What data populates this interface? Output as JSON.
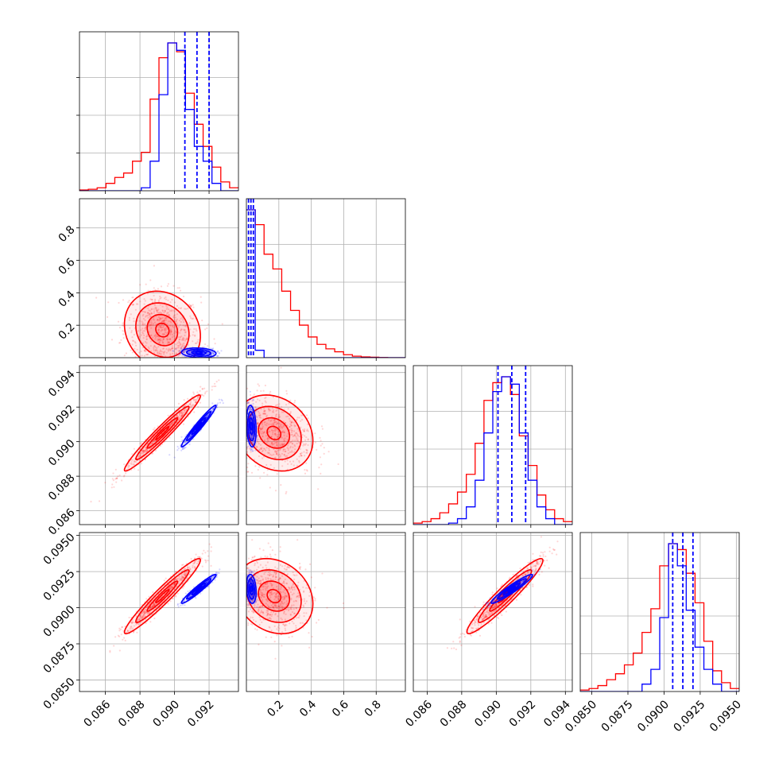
{
  "colors": {
    "red": "#ff0000",
    "blue": "#0000ff",
    "grid": "#b0b0b0"
  },
  "chart_data": {
    "type": "corner",
    "params": [
      {
        "range": [
          0.0845,
          0.0937
        ],
        "ticks": [
          0.086,
          0.088,
          0.09,
          0.092
        ],
        "tick_labels": [
          "0.086",
          "0.088",
          "0.090",
          "0.092"
        ]
      },
      {
        "range": [
          0.0,
          0.98
        ],
        "ticks": [
          0.2,
          0.4,
          0.6,
          0.8
        ],
        "tick_labels": [
          "0.2",
          "0.4",
          "0.6",
          "0.8"
        ]
      },
      {
        "range": [
          0.0852,
          0.0944
        ],
        "ticks": [
          0.086,
          0.088,
          0.09,
          0.092,
          0.094
        ],
        "tick_labels": [
          "0.086",
          "0.088",
          "0.090",
          "0.092",
          "0.094"
        ]
      },
      {
        "range": [
          0.0842,
          0.0952
        ],
        "ticks": [
          0.085,
          0.0875,
          0.09,
          0.0925,
          0.095
        ],
        "tick_labels": [
          "0.0850",
          "0.0875",
          "0.0900",
          "0.0925",
          "0.0950"
        ]
      }
    ],
    "series": [
      {
        "color": "#ff0000",
        "means": [
          0.0893,
          0.17,
          0.0905,
          0.0908
        ],
        "sds": [
          0.0011,
          0.12,
          0.0011,
          0.0013
        ],
        "histograms": [
          [
            0.005,
            0.01,
            0.02,
            0.05,
            0.09,
            0.12,
            0.2,
            0.26,
            0.62,
            0.9,
            1.0,
            0.94,
            0.66,
            0.45,
            0.3,
            0.16,
            0.06,
            0.02
          ],
          [
            1.0,
            0.9,
            0.7,
            0.6,
            0.45,
            0.32,
            0.22,
            0.14,
            0.09,
            0.06,
            0.04,
            0.02,
            0.01,
            0.005,
            0.003,
            0.001,
            0.0,
            0.0
          ],
          [
            0.01,
            0.02,
            0.04,
            0.08,
            0.14,
            0.22,
            0.34,
            0.55,
            0.84,
            0.96,
            1.0,
            0.88,
            0.6,
            0.4,
            0.2,
            0.1,
            0.04,
            0.02
          ],
          [
            0.01,
            0.02,
            0.04,
            0.08,
            0.12,
            0.18,
            0.26,
            0.4,
            0.56,
            0.85,
            1.0,
            0.96,
            0.8,
            0.6,
            0.34,
            0.14,
            0.06,
            0.02
          ]
        ]
      },
      {
        "color": "#0000ff",
        "means": [
          0.0914,
          0.03,
          0.0909,
          0.0913
        ],
        "sds": [
          0.0005,
          0.015,
          0.0006,
          0.0005
        ],
        "histograms": [
          [
            0,
            0,
            0,
            0,
            0,
            0,
            0,
            0.02,
            0.2,
            0.65,
            1.0,
            0.95,
            0.55,
            0.3,
            0.2,
            0.05,
            0,
            0
          ],
          [
            1.0,
            0.05,
            0,
            0,
            0,
            0,
            0,
            0,
            0,
            0,
            0,
            0,
            0,
            0,
            0,
            0,
            0,
            0
          ],
          [
            0,
            0,
            0,
            0,
            0.01,
            0.04,
            0.12,
            0.3,
            0.62,
            0.9,
            1.0,
            0.95,
            0.62,
            0.3,
            0.12,
            0.04,
            0,
            0
          ],
          [
            0,
            0,
            0,
            0,
            0,
            0,
            0,
            0.05,
            0.15,
            0.5,
            1.0,
            0.85,
            0.55,
            0.3,
            0.15,
            0.05,
            0,
            0
          ]
        ],
        "quantiles": [
          [
            0.0906,
            0.0913,
            0.092
          ],
          [
            0.013,
            0.028,
            0.043
          ],
          [
            0.0901,
            0.0909,
            0.0917
          ],
          [
            0.0906,
            0.0913,
            0.092
          ]
        ]
      }
    ]
  }
}
